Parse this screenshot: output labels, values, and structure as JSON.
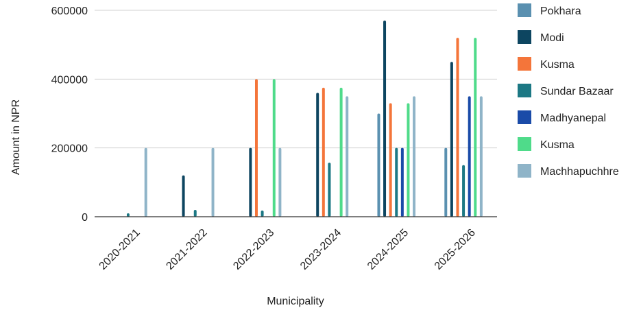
{
  "chart_data": {
    "type": "bar",
    "xlabel": "Municipality",
    "ylabel": "Amount in NPR",
    "ylim": [
      0,
      600000
    ],
    "yticks": [
      0,
      200000,
      400000,
      600000
    ],
    "ytick_labels": [
      "0",
      "200000",
      "400000",
      "600000"
    ],
    "grid": true,
    "legend_position": "right",
    "categories": [
      "2020-2021",
      "2021-2022",
      "2022-2023",
      "2023-2024",
      "2024-2025",
      "2025-2026"
    ],
    "series": [
      {
        "name": "Pokhara",
        "color": "#5a90b0",
        "values": [
          0,
          0,
          0,
          0,
          300000,
          200000
        ]
      },
      {
        "name": "Modi",
        "color": "#0d4560",
        "values": [
          0,
          120000,
          200000,
          360000,
          570000,
          450000
        ]
      },
      {
        "name": "Kusma",
        "color": "#f4753a",
        "values": [
          0,
          0,
          400000,
          375000,
          330000,
          520000
        ]
      },
      {
        "name": "Sundar Bazaar",
        "color": "#1c7884",
        "values": [
          10000,
          20000,
          18000,
          157000,
          200000,
          150000
        ]
      },
      {
        "name": "Madhyanepal",
        "color": "#1a4ba8",
        "values": [
          0,
          0,
          0,
          0,
          200000,
          350000
        ]
      },
      {
        "name": "Kusma",
        "color": "#4fdb8a",
        "values": [
          0,
          0,
          400000,
          375000,
          330000,
          520000
        ]
      },
      {
        "name": "Machhapuchhre",
        "color": "#8fb4c8",
        "values": [
          200000,
          200000,
          200000,
          350000,
          350000,
          350000
        ]
      }
    ]
  }
}
